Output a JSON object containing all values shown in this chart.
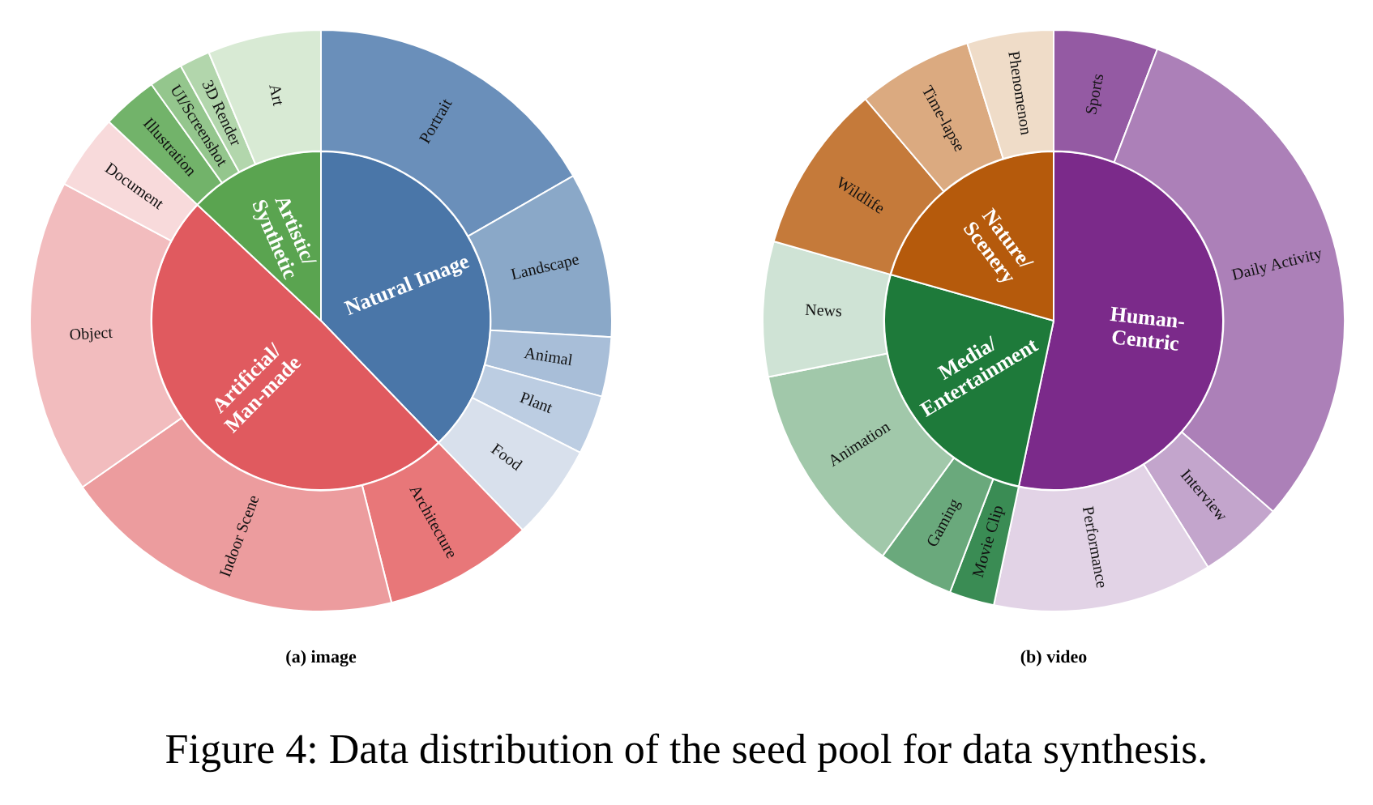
{
  "chart_data": [
    {
      "type": "pie",
      "categories": [
        "Natural Image",
        "Artificial/\nMan-made",
        "Artistic/\nSynthetic"
      ],
      "values": [
        37.8,
        49.2,
        13.0
      ],
      "colors": [
        "#4a76a8",
        "#e05a5f",
        "#5aa450"
      ]
    },
    {
      "type": "donut",
      "title": "(a) image",
      "categories": [
        "Portrait",
        "Landscape",
        "Animal",
        "Plant",
        "Food",
        "Architecture",
        "Indoor Scene",
        "Object",
        "Document",
        "Illustration",
        "UI/Screenshot",
        "3D Render",
        "Art"
      ],
      "values": [
        16.7,
        9.2,
        3.3,
        3.3,
        5.3,
        8.3,
        19.2,
        17.5,
        4.2,
        3.1,
        1.9,
        1.7,
        6.3
      ],
      "colors": [
        "#6a8fba",
        "#8aa8c8",
        "#a8bed8",
        "#bccde2",
        "#d8e0ec",
        "#e87779",
        "#ec9c9e",
        "#f2bcbe",
        "#f8dadb",
        "#72b36a",
        "#94c68d",
        "#b2d6ac",
        "#d8ead4"
      ]
    },
    {
      "type": "pie",
      "categories": [
        "Human-\nCentric",
        "Media/\nEntertainment",
        "Nature/\nScenery"
      ],
      "values": [
        53.3,
        26.1,
        20.6
      ],
      "colors": [
        "#7b2a8a",
        "#1e7a3a",
        "#b55a0c"
      ]
    },
    {
      "type": "donut",
      "title": "(b) video",
      "categories": [
        "Sports",
        "Daily Activity",
        "Interview",
        "Performance",
        "Movie Clip",
        "Gaming",
        "Animation",
        "News",
        "Wildlife",
        "Time-lapse",
        "Phenomenon"
      ],
      "values": [
        5.8,
        30.6,
        4.7,
        12.2,
        2.5,
        4.2,
        11.9,
        7.5,
        9.4,
        6.4,
        4.8
      ],
      "colors": [
        "#945aa3",
        "#ac80b8",
        "#c3a5cc",
        "#e2d3e6",
        "#3a8c54",
        "#6aa97c",
        "#a1c8aa",
        "#cfe3d5",
        "#c57a3a",
        "#dbaa80",
        "#efdcc8"
      ],
      "annotations": [
        "Figure 4: Data distribution of the seed pool for data synthesis."
      ]
    }
  ]
}
